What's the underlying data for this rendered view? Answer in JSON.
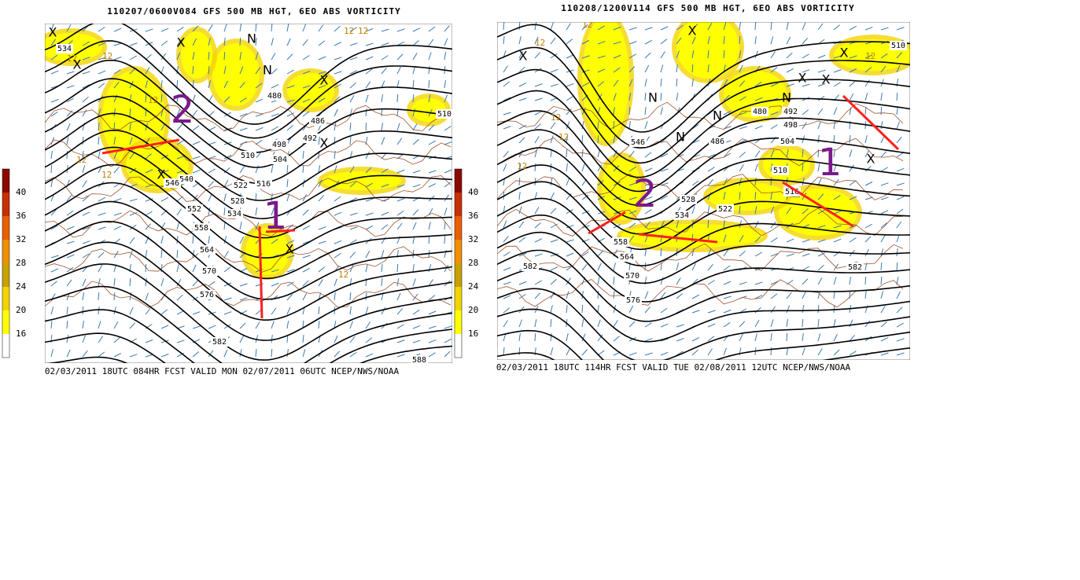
{
  "panels": [
    {
      "title": "110207/0600V084 GFS 500 MB HGT, 6EO ABS VORTICITY",
      "footer": "02/03/2011 18UTC 084HR FCST VALID MON 02/07/2011 06UTC  NCEP/NWS/NOAA",
      "colorbar": [
        16,
        20,
        24,
        28,
        32,
        36,
        40
      ],
      "contour_labels": [
        "534",
        "480",
        "486",
        "492",
        "498",
        "504",
        "510",
        "516",
        "522",
        "528",
        "534",
        "540",
        "546",
        "552",
        "558",
        "564",
        "570",
        "576",
        "582",
        "588",
        "510"
      ],
      "symbols": [
        "X",
        "X",
        "N",
        "N",
        "X",
        "X",
        "X",
        "X",
        "X"
      ],
      "vorticity_labels": [
        "12",
        "12",
        "12",
        "12",
        "12",
        "12",
        "12",
        "12"
      ],
      "annotations": [
        "2",
        "1"
      ]
    },
    {
      "title": "110208/1200V114 GFS 500 MB HGT, 6EO ABS VORTICITY",
      "footer": "02/03/2011 18UTC 114HR FCST VALID TUE 02/08/2011 12UTC  NCEP/NWS/NOAA",
      "contour_labels": [
        "546",
        "528",
        "534",
        "522",
        "516",
        "510",
        "504",
        "498",
        "492",
        "480",
        "486",
        "558",
        "564",
        "570",
        "576",
        "582",
        "582",
        "510"
      ],
      "symbols": [
        "X",
        "X",
        "N",
        "N",
        "N",
        "X",
        "X",
        "X",
        "X",
        "N"
      ],
      "vorticity_labels": [
        "12",
        "12",
        "12",
        "12",
        "12",
        "12"
      ],
      "annotations": [
        "2",
        "1"
      ]
    }
  ],
  "colorbar_colors": [
    "#ffffff",
    "#ffff00",
    "#f2d400",
    "#c8a000",
    "#f09000",
    "#e86000",
    "#c83000",
    "#8a0a00"
  ]
}
